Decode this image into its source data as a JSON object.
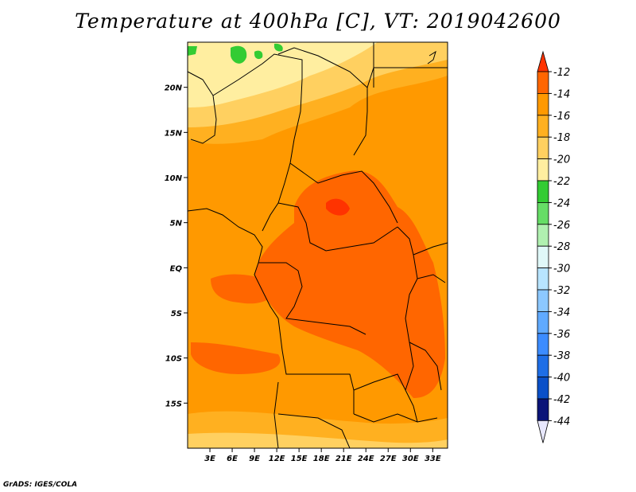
{
  "title": "Temperature at 400hPa [C], VT: 2019042600",
  "footer": "GrADS: IGES/COLA",
  "map": {
    "lon_ticks": [
      "3E",
      "6E",
      "9E",
      "12E",
      "15E",
      "18E",
      "21E",
      "24E",
      "27E",
      "30E",
      "33E"
    ],
    "lat_ticks": [
      "20N",
      "15N",
      "10N",
      "5N",
      "EQ",
      "5S",
      "10S",
      "15S"
    ],
    "lon_range": [
      0,
      35
    ],
    "lat_range": [
      -20,
      25
    ]
  },
  "colorbar": {
    "labels": [
      "-12",
      "-14",
      "-16",
      "-18",
      "-20",
      "-22",
      "-24",
      "-26",
      "-28",
      "-30",
      "-32",
      "-34",
      "-36",
      "-38",
      "-40",
      "-42",
      "-44"
    ],
    "colors": [
      "#ff3300",
      "#ff6600",
      "#ff9900",
      "#ffb020",
      "#ffd060",
      "#ffeea0",
      "#33cc33",
      "#66dd66",
      "#b0f0b0",
      "#e0f8f8",
      "#b8e4ff",
      "#8cc8ff",
      "#60aaff",
      "#3c8cff",
      "#1e6ee6",
      "#0a50c8",
      "#0a1478"
    ],
    "over_color": "#ff3300",
    "under_color": "#e8e8ff"
  }
}
